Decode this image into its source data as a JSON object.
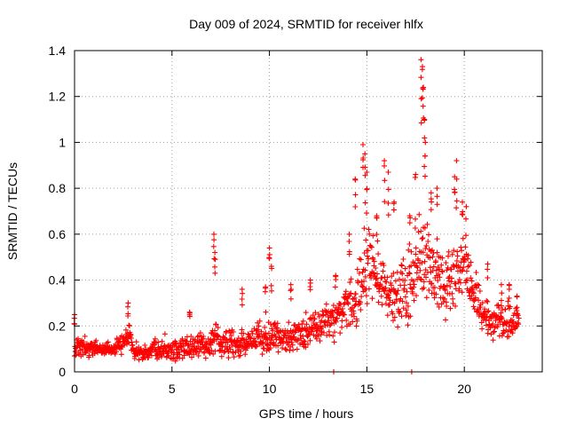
{
  "colors": {
    "series": "#ff0000",
    "grid": "#a0a0a0",
    "axis": "#000000"
  },
  "chart_data": {
    "type": "scatter",
    "title": "Day 009 of 2024, SRMTID for receiver hlfx",
    "xlabel": "GPS time / hours",
    "ylabel": "SRMTID / TECUs",
    "xlim": [
      0,
      24
    ],
    "ylim": [
      0,
      1.4
    ],
    "xticks": [
      0,
      5,
      10,
      15,
      20
    ],
    "xtick_labels": [
      "0",
      "5",
      "10",
      "15",
      "20"
    ],
    "yticks": [
      0,
      0.2,
      0.4,
      0.6,
      0.8,
      1,
      1.2,
      1.4
    ],
    "ytick_labels": [
      "0",
      "0.2",
      "0.4",
      "0.6",
      "0.8",
      "1",
      "1.2",
      "1.4"
    ],
    "grid": true,
    "marker": "plus",
    "series": [
      {
        "name": "SRMTID",
        "sample_spacing_hours": 0.0167,
        "envelope": {
          "hours": [
            0,
            0.5,
            1,
            2,
            2.7,
            2.8,
            3,
            3.5,
            4,
            5,
            6,
            7,
            7.2,
            7.5,
            8,
            9,
            10,
            10.5,
            11,
            12,
            13,
            13.5,
            14,
            14.5,
            14.8,
            15,
            15.5,
            16,
            16.5,
            17,
            17.5,
            17.8,
            18,
            18.5,
            19,
            19.5,
            20,
            20.5,
            21,
            21.5,
            22,
            22.5,
            22.8
          ],
          "median": [
            0.1,
            0.11,
            0.1,
            0.1,
            0.14,
            0.2,
            0.09,
            0.08,
            0.1,
            0.1,
            0.1,
            0.12,
            0.16,
            0.12,
            0.12,
            0.13,
            0.16,
            0.14,
            0.16,
            0.18,
            0.22,
            0.25,
            0.28,
            0.32,
            0.42,
            0.48,
            0.4,
            0.36,
            0.32,
            0.34,
            0.42,
            0.5,
            0.52,
            0.42,
            0.38,
            0.42,
            0.46,
            0.32,
            0.24,
            0.22,
            0.22,
            0.2,
            0.26
          ],
          "spread": [
            0.04,
            0.04,
            0.03,
            0.03,
            0.05,
            0.08,
            0.03,
            0.03,
            0.04,
            0.05,
            0.05,
            0.05,
            0.1,
            0.05,
            0.05,
            0.06,
            0.07,
            0.07,
            0.07,
            0.07,
            0.08,
            0.09,
            0.1,
            0.13,
            0.16,
            0.16,
            0.13,
            0.13,
            0.13,
            0.14,
            0.16,
            0.2,
            0.2,
            0.15,
            0.14,
            0.16,
            0.15,
            0.1,
            0.07,
            0.07,
            0.07,
            0.07,
            0.05
          ]
        },
        "peaks": [
          {
            "hour": 0.0,
            "value": 0.25
          },
          {
            "hour": 2.75,
            "value": 0.3
          },
          {
            "hour": 5.9,
            "value": 0.26
          },
          {
            "hour": 7.15,
            "value": 0.6
          },
          {
            "hour": 7.2,
            "value": 0.52
          },
          {
            "hour": 8.6,
            "value": 0.36
          },
          {
            "hour": 9.8,
            "value": 0.37
          },
          {
            "hour": 10.0,
            "value": 0.54
          },
          {
            "hour": 10.1,
            "value": 0.46
          },
          {
            "hour": 11.1,
            "value": 0.38
          },
          {
            "hour": 12.1,
            "value": 0.4
          },
          {
            "hour": 13.4,
            "value": 0.42
          },
          {
            "hour": 14.1,
            "value": 0.6
          },
          {
            "hour": 14.4,
            "value": 0.84
          },
          {
            "hour": 14.8,
            "value": 0.99
          },
          {
            "hour": 14.9,
            "value": 0.95
          },
          {
            "hour": 15.0,
            "value": 0.87
          },
          {
            "hour": 15.5,
            "value": 0.68
          },
          {
            "hour": 15.9,
            "value": 0.92
          },
          {
            "hour": 16.1,
            "value": 0.87
          },
          {
            "hour": 16.4,
            "value": 0.74
          },
          {
            "hour": 17.2,
            "value": 0.68
          },
          {
            "hour": 17.5,
            "value": 0.86
          },
          {
            "hour": 17.78,
            "value": 1.36
          },
          {
            "hour": 17.85,
            "value": 1.33
          },
          {
            "hour": 17.9,
            "value": 1.24
          },
          {
            "hour": 17.95,
            "value": 1.1
          },
          {
            "hour": 18.0,
            "value": 1.0
          },
          {
            "hour": 18.3,
            "value": 0.78
          },
          {
            "hour": 18.6,
            "value": 0.8
          },
          {
            "hour": 19.6,
            "value": 0.92
          },
          {
            "hour": 19.5,
            "value": 0.85
          },
          {
            "hour": 19.9,
            "value": 0.74
          },
          {
            "hour": 20.1,
            "value": 0.72
          },
          {
            "hour": 21.2,
            "value": 0.47
          },
          {
            "hour": 21.9,
            "value": 0.38
          },
          {
            "hour": 22.3,
            "value": 0.38
          },
          {
            "hour": 22.7,
            "value": 0.33
          }
        ],
        "zeros": [
          {
            "hour": 13.3,
            "value": 0.0
          },
          {
            "hour": 17.3,
            "value": 0.0
          }
        ]
      }
    ]
  }
}
